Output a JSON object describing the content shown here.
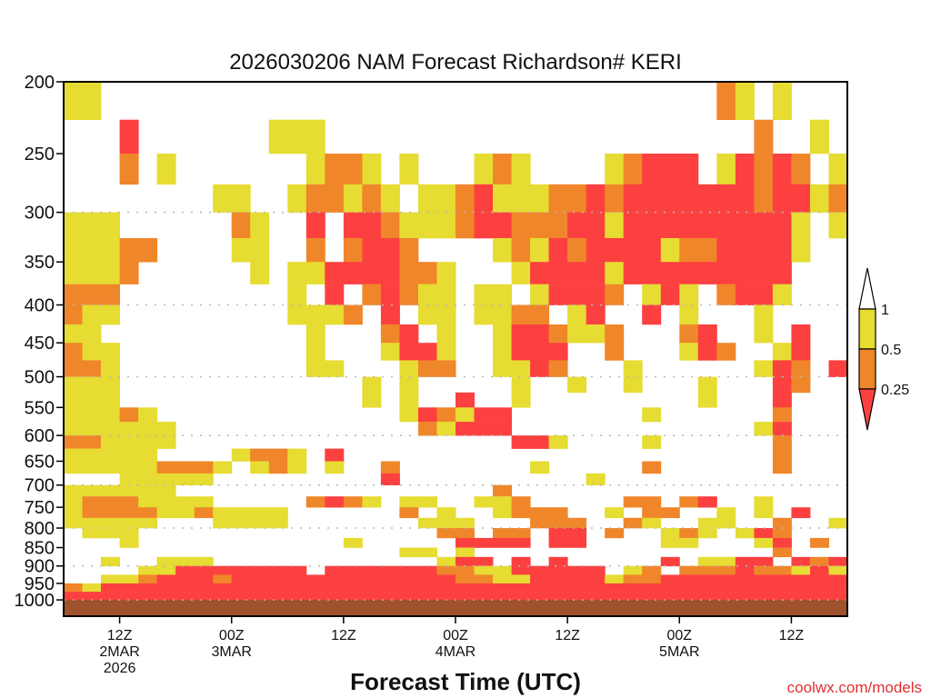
{
  "chart_data": {
    "type": "heatmap",
    "title": "2026030206 NAM Forecast Richardson# KERI",
    "xlabel": "Forecast Time (UTC)",
    "ylabel": "",
    "watermark": "coolwx.com/models",
    "ylim": [
      1000,
      200
    ],
    "y_scale": "log",
    "y_ticks": [
      "200",
      "250",
      "300",
      "350",
      "400",
      "450",
      "500",
      "550",
      "600",
      "650",
      "700",
      "750",
      "800",
      "850",
      "900",
      "950",
      "1000"
    ],
    "y_gridlines": [
      300,
      400,
      500,
      600,
      700,
      800,
      900,
      1000
    ],
    "x_range_hours": [
      0,
      84
    ],
    "x_ticks": [
      {
        "hour": 6,
        "lines": [
          "12Z",
          "2MAR",
          "2026"
        ]
      },
      {
        "hour": 18,
        "lines": [
          "00Z",
          "3MAR"
        ]
      },
      {
        "hour": 30,
        "lines": [
          "12Z"
        ]
      },
      {
        "hour": 42,
        "lines": [
          "00Z",
          "4MAR"
        ]
      },
      {
        "hour": 54,
        "lines": [
          "12Z"
        ]
      },
      {
        "hour": 66,
        "lines": [
          "00Z",
          "5MAR"
        ]
      },
      {
        "hour": 78,
        "lines": [
          "12Z"
        ]
      }
    ],
    "legend": {
      "placement": "right",
      "labels": [
        "1",
        "0.5",
        "0.25"
      ],
      "categories": [
        {
          "code": "y",
          "range": "0.5-1",
          "color": "#e6dc32"
        },
        {
          "code": "o",
          "range": "0.25-0.5",
          "color": "#f0862a"
        },
        {
          "code": "r",
          "range": "<0.25",
          "color": "#fc4040"
        }
      ]
    },
    "ground_color": "#a0522d",
    "grid": {
      "time_step_hours": 2,
      "level_step_hpa": 25,
      "level_top": 200,
      "rows_top_to_bottom": [
        "yy.................................oy.y...",
        "...r.......yyy.......................o..y.",
        "...o.y.......yooy.y...yoy....yorrr.yroro.y",
        "........yy..yooyoy.yyoryyyoororrrrrrrorryo",
        "yyy......oy..r.rroyyyorrooorryrrrrrrrrry.y",
        "yyyoo....yy..o.orro....yoyrorrrryoorrrry..",
        "yyyo......y.yyrrrrooy...yrrrryrrrrrrrrr...",
        "ooo.........y.r.oroyy.yy.yrrro.yry.orry...",
        "oyy.........yyyo.r.yy.yyoo.yr..r.y...y....",
        "yy...........y...or.y..yrroyyo...or..y.r..",
        "oyy..........y...yrry..yrrr..o...yro..yr..",
        "ooy..........yy...yoo..yyro...y......yro.r",
        "yyy.............y.y.....y..y..y...y...ro..",
        "yyy.............y.y..r..y.........y...r...",
        "yyyoy.............yroyrr.......y......o...",
        "yyyyyy.............oyrrr.............yr...",
        "ooyyyy..................rry....y......o...",
        "yyyyy....yooy.r.......................o...",
        "yyyyyoooy.yoy.y..o.......y.....o......o...",
        "...yyyyy.........r..........y.............",
        "yyyyyy.................o..................",
        "yoooyyyy.....oroy.yy..yyo.....oo.or..y....",
        "yooooyyoyyyy......o.y..yooo..y.oo..y.y.r..",
        "yyyyy...yyyy.......yyy...ooo..oy..yy..o..y",
        ".yyy................oo.oo.rr.o..yoy.yro...",
        "...y...........y.....rrrr.rr....yy...yr.o.",
        "..................yy.y................o...",
        "..y..yyy............yrr.r.r.....r.yyrr.ror",
        "....yyrrrrrrr.rrrrrrooyyrrrrr.yo.ooorooyry",
        "..yyorrrorrrrrrrrrrrrooyyrrrryoorrrrrrrrrr",
        "oyrrrrrrrrrrrrrrrrrrrrrrrrrrrrrrrrrrrrrrrr",
        "rrrrrrrrrrrrrrrrrrrrrrrrrrrrrrrrrrrrrrrrrr"
      ]
    }
  }
}
